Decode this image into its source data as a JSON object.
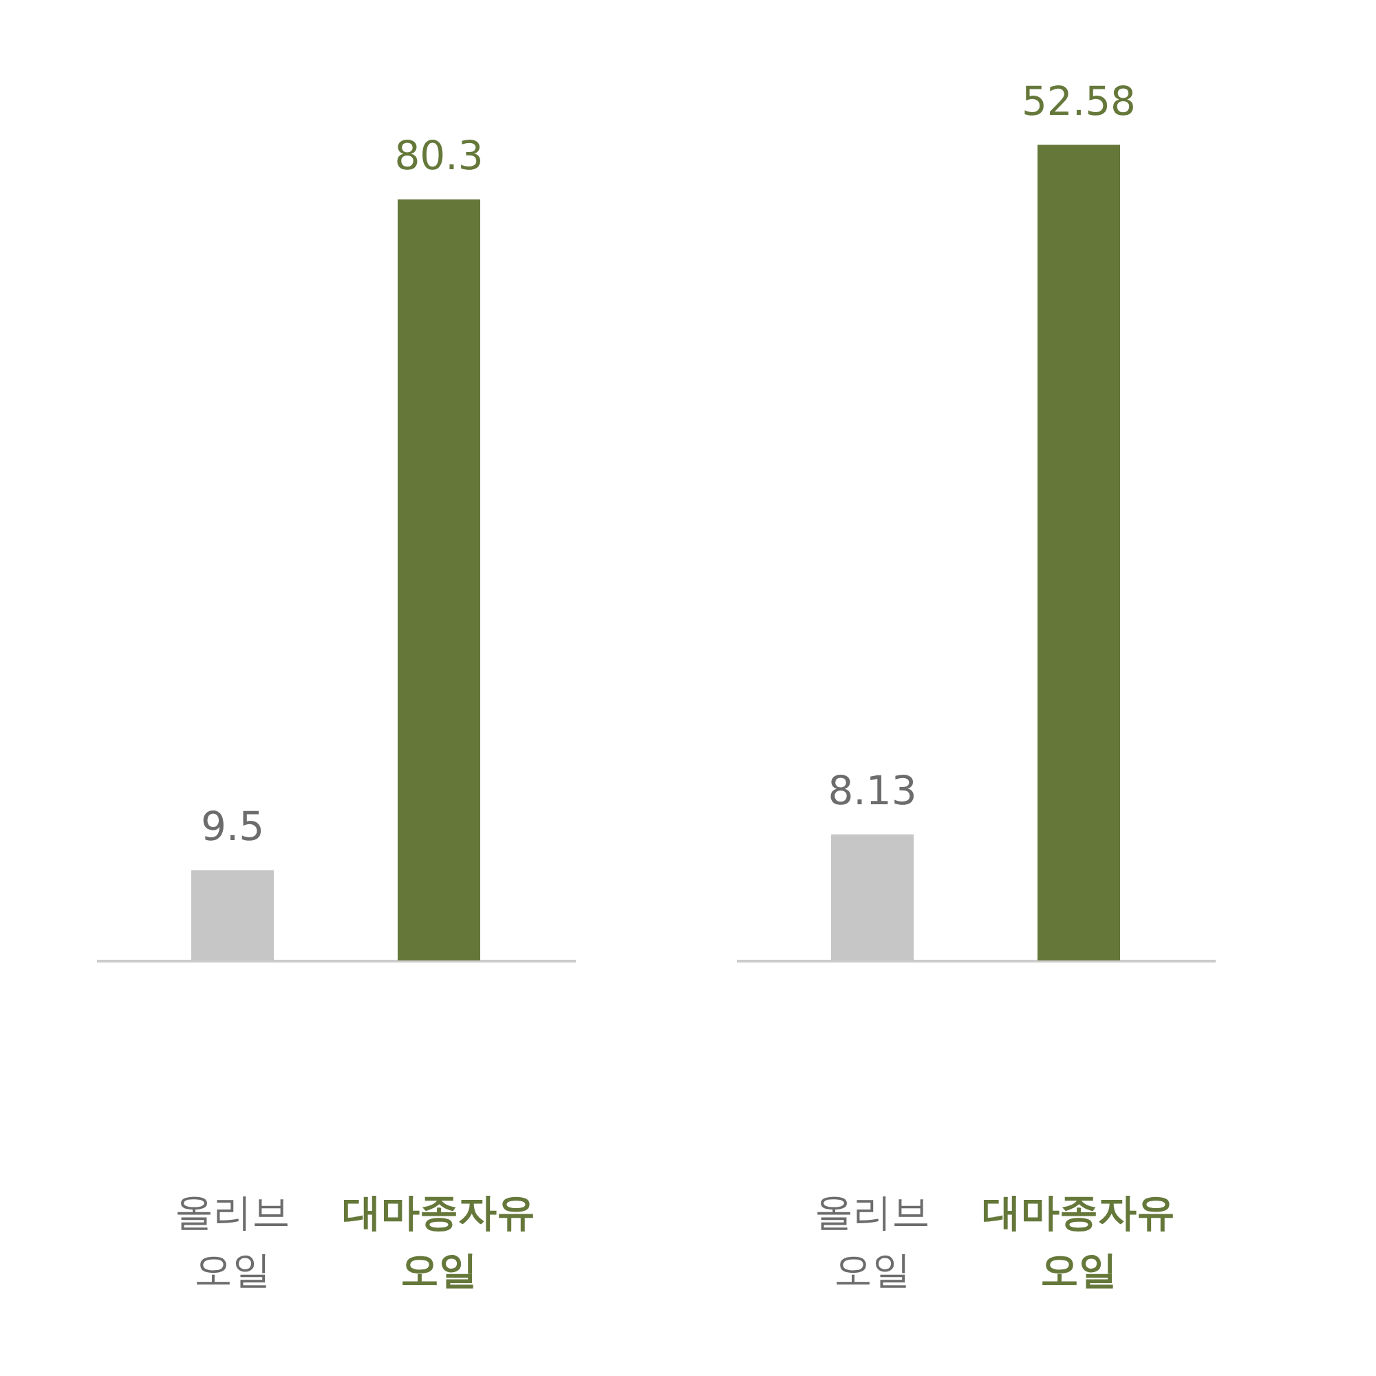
{
  "chart_data": [
    {
      "type": "bar",
      "categories": [
        "올리브 오일",
        "대마종자유 오일"
      ],
      "values": [
        9.5,
        80.3
      ],
      "colors": [
        "#c6c6c6",
        "#65783a"
      ],
      "data_labels": true,
      "tick_labels": "x"
    },
    {
      "type": "bar",
      "categories": [
        "올리브 오일",
        "대마종자유 오일"
      ],
      "values": [
        8.13,
        52.58
      ],
      "colors": [
        "#c6c6c6",
        "#65783a"
      ],
      "data_labels": true,
      "tick_labels": "x"
    }
  ]
}
